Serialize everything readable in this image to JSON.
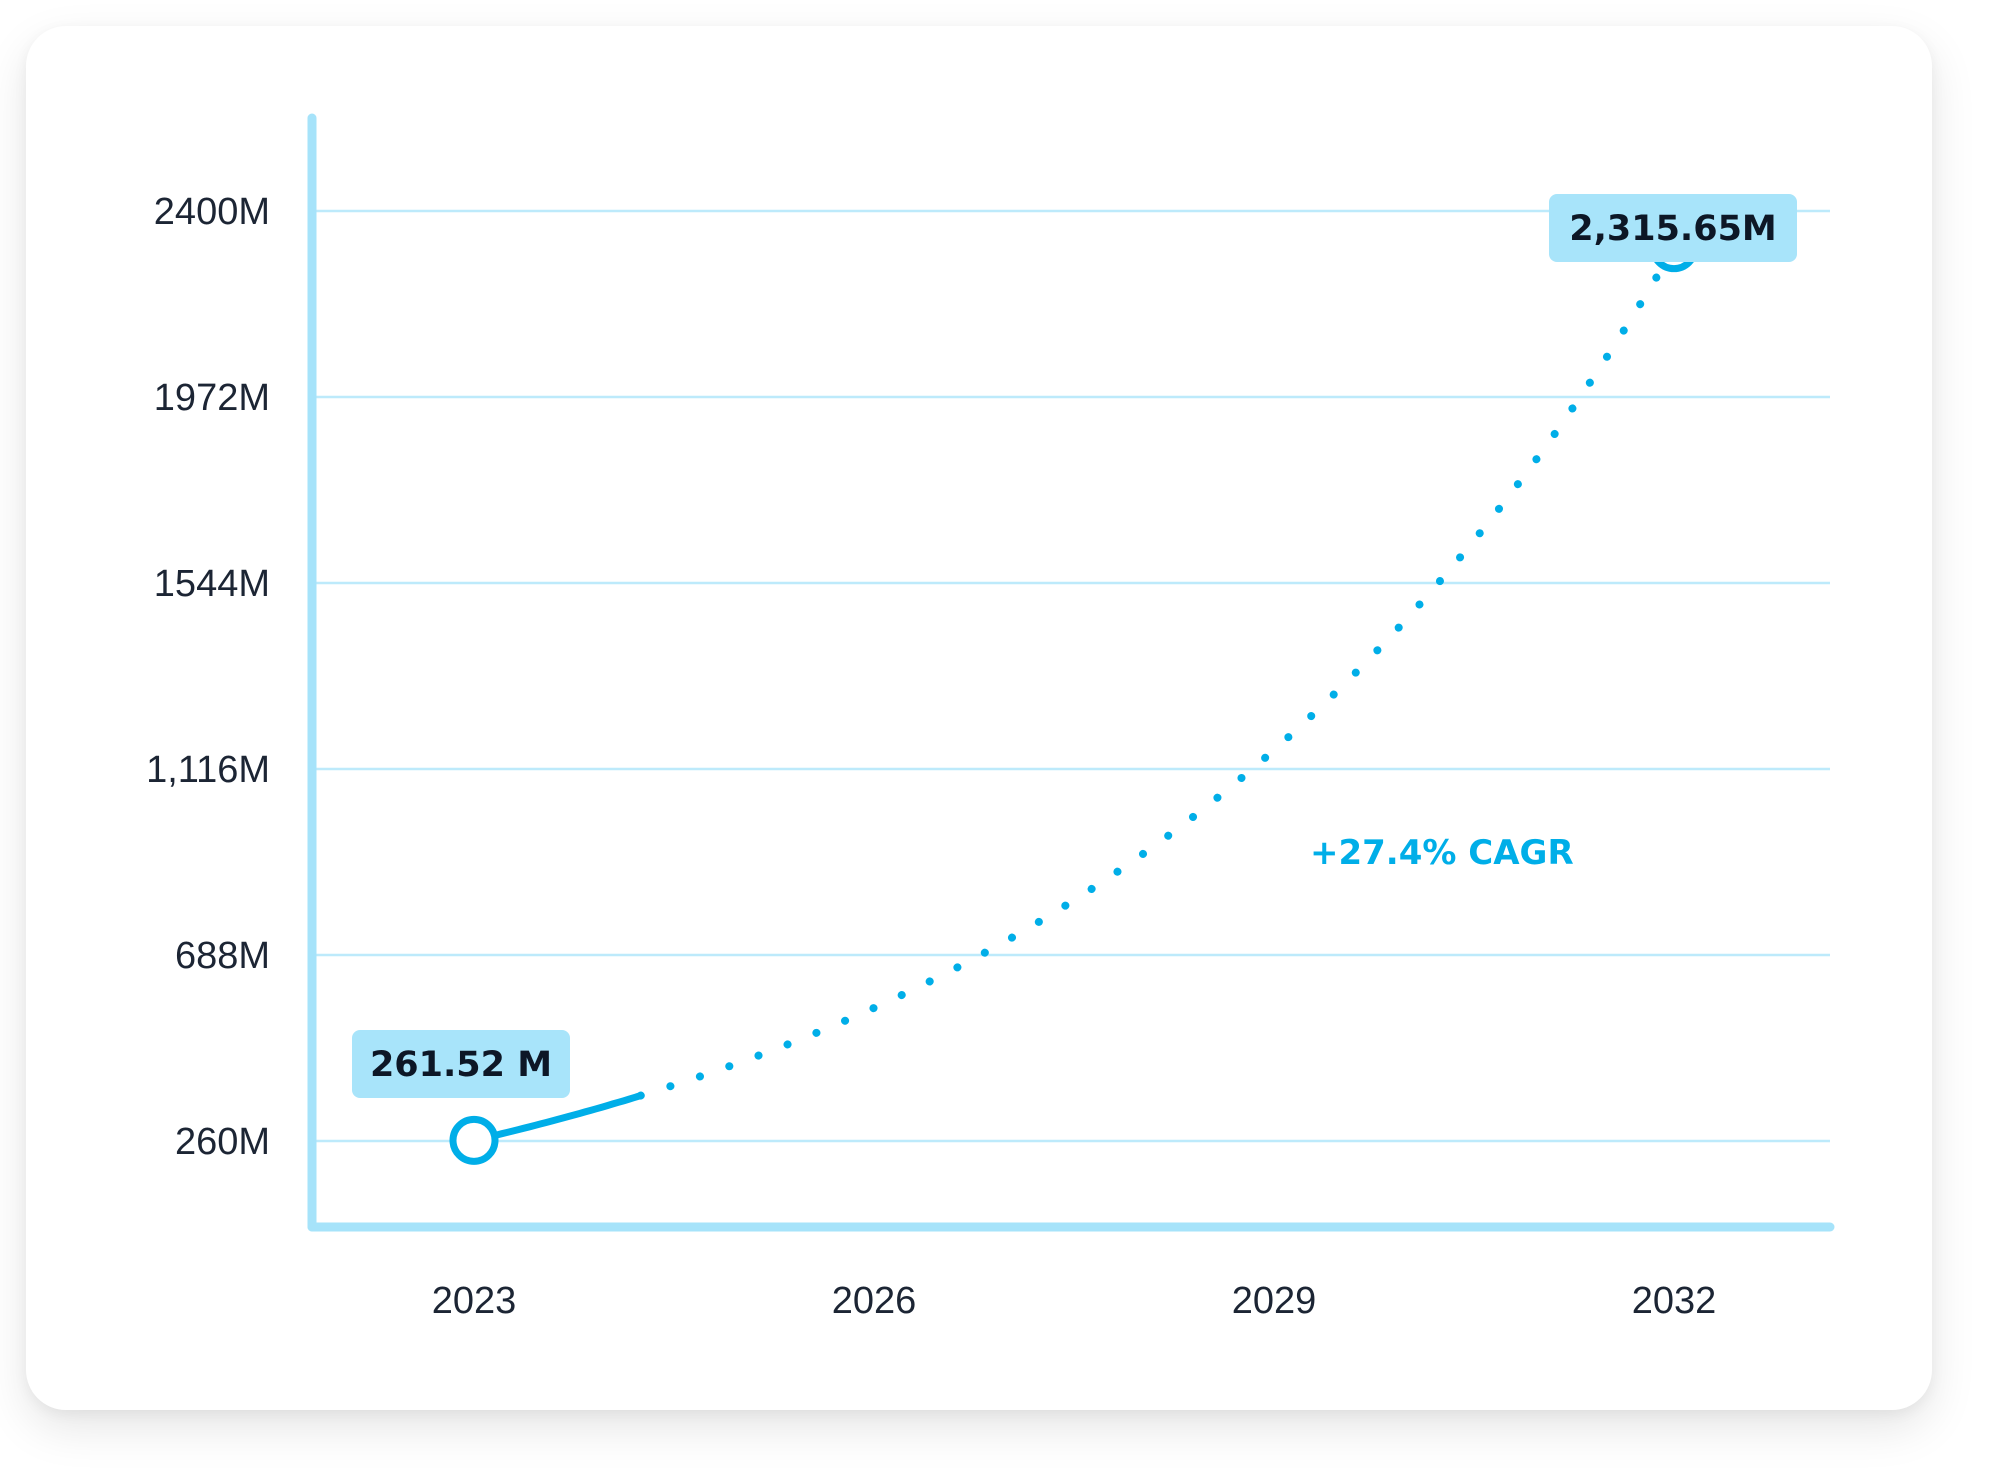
{
  "colors": {
    "accent": "#00aee8",
    "axis": "#a6e3fa",
    "grid": "#bdeafb",
    "callout_bg": "#a8e4fa",
    "text": "#1c2534"
  },
  "chart_data": {
    "type": "line",
    "title": "",
    "xlabel": "",
    "ylabel": "",
    "x_ticks": [
      "2023",
      "2026",
      "2029",
      "2032"
    ],
    "y_ticks": [
      "260M",
      "688M",
      "1,116M",
      "1544M",
      "1972M",
      "2400M"
    ],
    "y_tick_values": [
      260,
      688,
      1116,
      1544,
      1972,
      2400
    ],
    "xlim": [
      2022.65,
      2033.8
    ],
    "ylim": [
      60,
      2620
    ],
    "grid": true,
    "series": [
      {
        "style": "solid-then-dotted",
        "solid_until_x": 2024.25,
        "x": [
          2023,
          2032
        ],
        "y": [
          261.52,
          2315.65
        ]
      }
    ],
    "data_labels": [
      {
        "x": 2023,
        "y": 261.52,
        "text": "261.52 M"
      },
      {
        "x": 2032,
        "y": 2315.65,
        "text": "2,315.65M"
      }
    ],
    "annotations": [
      {
        "text": "+27.4% CAGR"
      }
    ]
  }
}
